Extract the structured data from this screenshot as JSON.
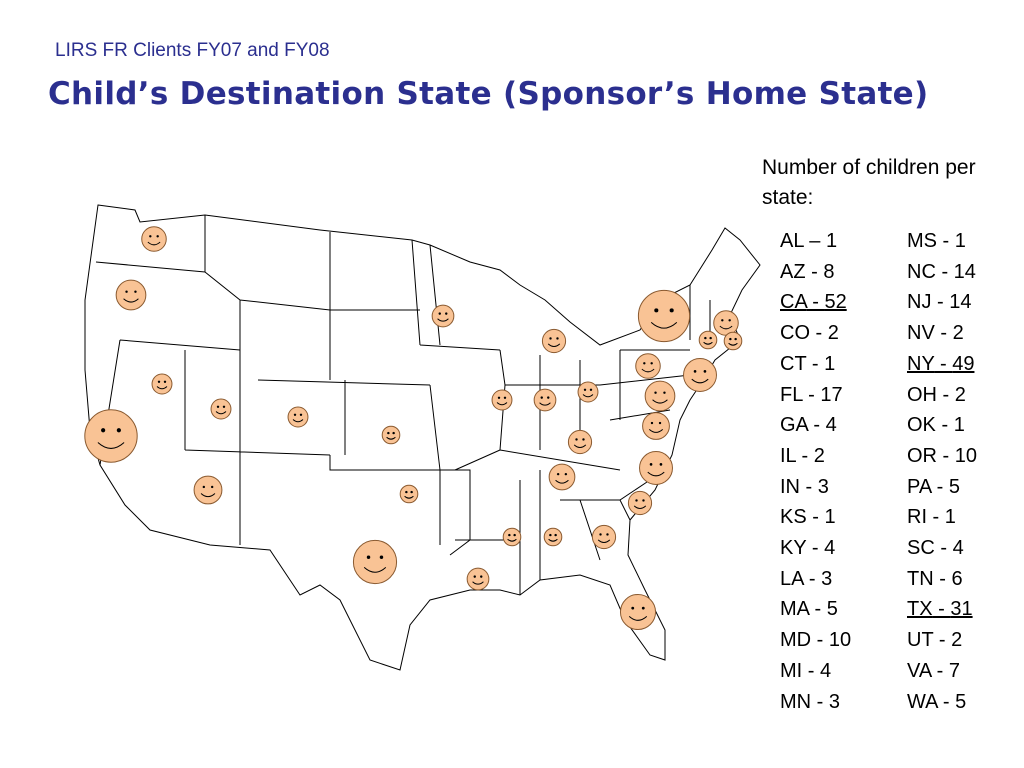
{
  "header": {
    "subtitle": "LIRS FR Clients FY07 and FY08",
    "title": "Child’s Destination State (Sponsor’s Home State)"
  },
  "legend": {
    "heading": "Number of children per state:",
    "entries": [
      {
        "state": "AL",
        "sep": " – ",
        "count": 1,
        "underlined": false
      },
      {
        "state": "AZ",
        "sep": " - ",
        "count": 8,
        "underlined": false
      },
      {
        "state": "CA",
        "sep": " - ",
        "count": 52,
        "underlined": true
      },
      {
        "state": "CO",
        "sep": " - ",
        "count": 2,
        "underlined": false
      },
      {
        "state": "CT",
        "sep": " - ",
        "count": 1,
        "underlined": false
      },
      {
        "state": "FL",
        "sep": " - ",
        "count": 17,
        "underlined": false
      },
      {
        "state": "GA",
        "sep": " - ",
        "count": 4,
        "underlined": false
      },
      {
        "state": "IL",
        "sep": " - ",
        "count": 2,
        "underlined": false
      },
      {
        "state": "IN",
        "sep": " - ",
        "count": 3,
        "underlined": false
      },
      {
        "state": "KS",
        "sep": " - ",
        "count": 1,
        "underlined": false
      },
      {
        "state": "KY",
        "sep": " - ",
        "count": 4,
        "underlined": false
      },
      {
        "state": "LA",
        "sep": " - ",
        "count": 3,
        "underlined": false
      },
      {
        "state": "MA",
        "sep": " - ",
        "count": 5,
        "underlined": false
      },
      {
        "state": "MD",
        "sep": " - ",
        "count": 10,
        "underlined": false
      },
      {
        "state": "MI",
        "sep": " - ",
        "count": 4,
        "underlined": false
      },
      {
        "state": "MN",
        "sep": " - ",
        "count": 3,
        "underlined": false
      },
      {
        "state": "MS",
        "sep": " - ",
        "count": 1,
        "underlined": false
      },
      {
        "state": "NC",
        "sep": " - ",
        "count": 14,
        "underlined": false
      },
      {
        "state": "NJ",
        "sep": " - ",
        "count": 14,
        "underlined": false
      },
      {
        "state": "NV",
        "sep": " - ",
        "count": 2,
        "underlined": false
      },
      {
        "state": "NY",
        "sep": " - ",
        "count": 49,
        "underlined": true
      },
      {
        "state": "OH",
        "sep": " - ",
        "count": 2,
        "underlined": false
      },
      {
        "state": "OK",
        "sep": " - ",
        "count": 1,
        "underlined": false
      },
      {
        "state": "OR",
        "sep": " - ",
        "count": 10,
        "underlined": false
      },
      {
        "state": "PA",
        "sep": " - ",
        "count": 5,
        "underlined": false
      },
      {
        "state": "RI",
        "sep": " - ",
        "count": 1,
        "underlined": false
      },
      {
        "state": "SC",
        "sep": " - ",
        "count": 4,
        "underlined": false
      },
      {
        "state": "TN",
        "sep": " - ",
        "count": 6,
        "underlined": false
      },
      {
        "state": "TX",
        "sep": " - ",
        "count": 31,
        "underlined": true
      },
      {
        "state": "UT",
        "sep": " - ",
        "count": 2,
        "underlined": false
      },
      {
        "state": "VA",
        "sep": " - ",
        "count": 7,
        "underlined": false
      },
      {
        "state": "WA",
        "sep": " - ",
        "count": 5,
        "underlined": false
      }
    ]
  }
}
